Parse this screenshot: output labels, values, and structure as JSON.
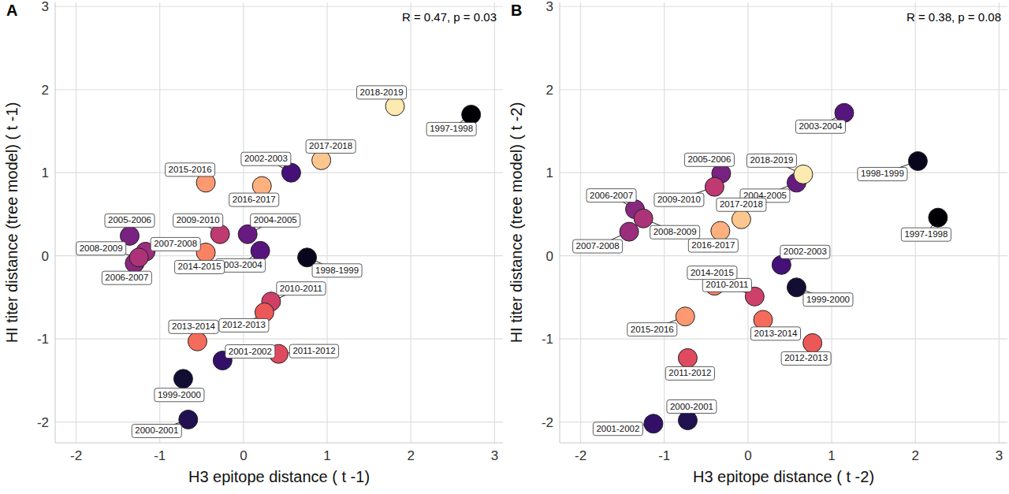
{
  "chart_data": [
    {
      "type": "scatter",
      "title": "A",
      "x_label": "H3 epitope distance ( t -1)",
      "y_label": "HI titer distance (tree model) ( t -1)",
      "annotation": "R = 0.47, p = 0.03",
      "labels": [
        "1997-1998",
        "1998-1999",
        "1999-2000",
        "2000-2001",
        "2001-2002",
        "2002-2003",
        "2003-2004",
        "2004-2005",
        "2005-2006",
        "2006-2007",
        "2007-2008",
        "2008-2009",
        "2009-2010",
        "2010-2011",
        "2011-2012",
        "2012-2013",
        "2013-2014",
        "2014-2015",
        "2015-2016",
        "2016-2017",
        "2017-2018",
        "2018-2019"
      ],
      "x": [
        2.72,
        0.76,
        -0.72,
        -0.66,
        -0.25,
        0.57,
        0.2,
        0.05,
        -1.36,
        -1.3,
        -1.17,
        -1.25,
        -0.28,
        0.33,
        0.42,
        0.25,
        -0.55,
        -0.45,
        -0.45,
        0.22,
        0.93,
        1.81
      ],
      "values": [
        1.7,
        -0.02,
        -1.48,
        -1.97,
        -1.26,
        1.0,
        0.06,
        0.26,
        0.24,
        -0.09,
        0.05,
        -0.02,
        0.26,
        -0.55,
        -1.18,
        -0.68,
        -1.03,
        0.04,
        0.88,
        0.84,
        1.15,
        1.8
      ],
      "colors": [
        "#000004",
        "#07061c",
        "#120d32",
        "#221150",
        "#331068",
        "#451077",
        "#56147d",
        "#671b80",
        "#782281",
        "#89287f",
        "#9a2e7c",
        "#ac3378",
        "#be3a71",
        "#cf4069",
        "#df4a5f",
        "#ec5858",
        "#f56c5c",
        "#fa8264",
        "#fd9970",
        "#feb07e",
        "#fec68f",
        "#fdeab0"
      ],
      "xlim": [
        -2.25,
        3.1
      ],
      "ylim": [
        -2.25,
        3.05
      ],
      "xticks": [
        -2,
        -1,
        0,
        1,
        2,
        3
      ],
      "yticks": [
        -2,
        -1,
        0,
        1,
        2,
        3
      ],
      "grid": true
    },
    {
      "type": "scatter",
      "title": "B",
      "x_label": "H3 epitope distance ( t -2)",
      "y_label": "HI titer distance (tree model) ( t -2)",
      "annotation": "R = 0.38, p = 0.08",
      "labels": [
        "1997-1998",
        "1998-1999",
        "1999-2000",
        "2000-2001",
        "2001-2002",
        "2002-2003",
        "2003-2004",
        "2004-2005",
        "2005-2006",
        "2006-2007",
        "2007-2008",
        "2008-2009",
        "2009-2010",
        "2010-2011",
        "2011-2012",
        "2012-2013",
        "2013-2014",
        "2014-2015",
        "2015-2016",
        "2016-2017",
        "2017-2018",
        "2018-2019"
      ],
      "x": [
        2.27,
        2.03,
        0.58,
        -0.72,
        -1.13,
        0.4,
        1.15,
        0.58,
        -0.32,
        -1.35,
        -1.42,
        -1.25,
        -0.4,
        0.08,
        -0.72,
        0.77,
        0.18,
        -0.4,
        -0.75,
        -0.33,
        -0.08,
        0.66
      ],
      "values": [
        0.46,
        1.14,
        -0.38,
        -1.98,
        -2.02,
        -0.11,
        1.72,
        0.88,
        0.99,
        0.56,
        0.29,
        0.45,
        0.83,
        -0.49,
        -1.23,
        -1.05,
        -0.77,
        -0.36,
        -0.73,
        0.3,
        0.44,
        0.98
      ],
      "colors": [
        "#000004",
        "#07061c",
        "#120d32",
        "#221150",
        "#331068",
        "#451077",
        "#56147d",
        "#671b80",
        "#782281",
        "#89287f",
        "#9a2e7c",
        "#ac3378",
        "#be3a71",
        "#cf4069",
        "#df4a5f",
        "#ec5858",
        "#f56c5c",
        "#fa8264",
        "#fd9970",
        "#feb07e",
        "#fec68f",
        "#fdeab0"
      ],
      "xlim": [
        -2.25,
        3.1
      ],
      "ylim": [
        -2.25,
        3.05
      ],
      "xticks": [
        -2,
        -1,
        0,
        1,
        2,
        3
      ],
      "yticks": [
        -2,
        -1,
        0,
        1,
        2,
        3
      ],
      "grid": true
    }
  ]
}
